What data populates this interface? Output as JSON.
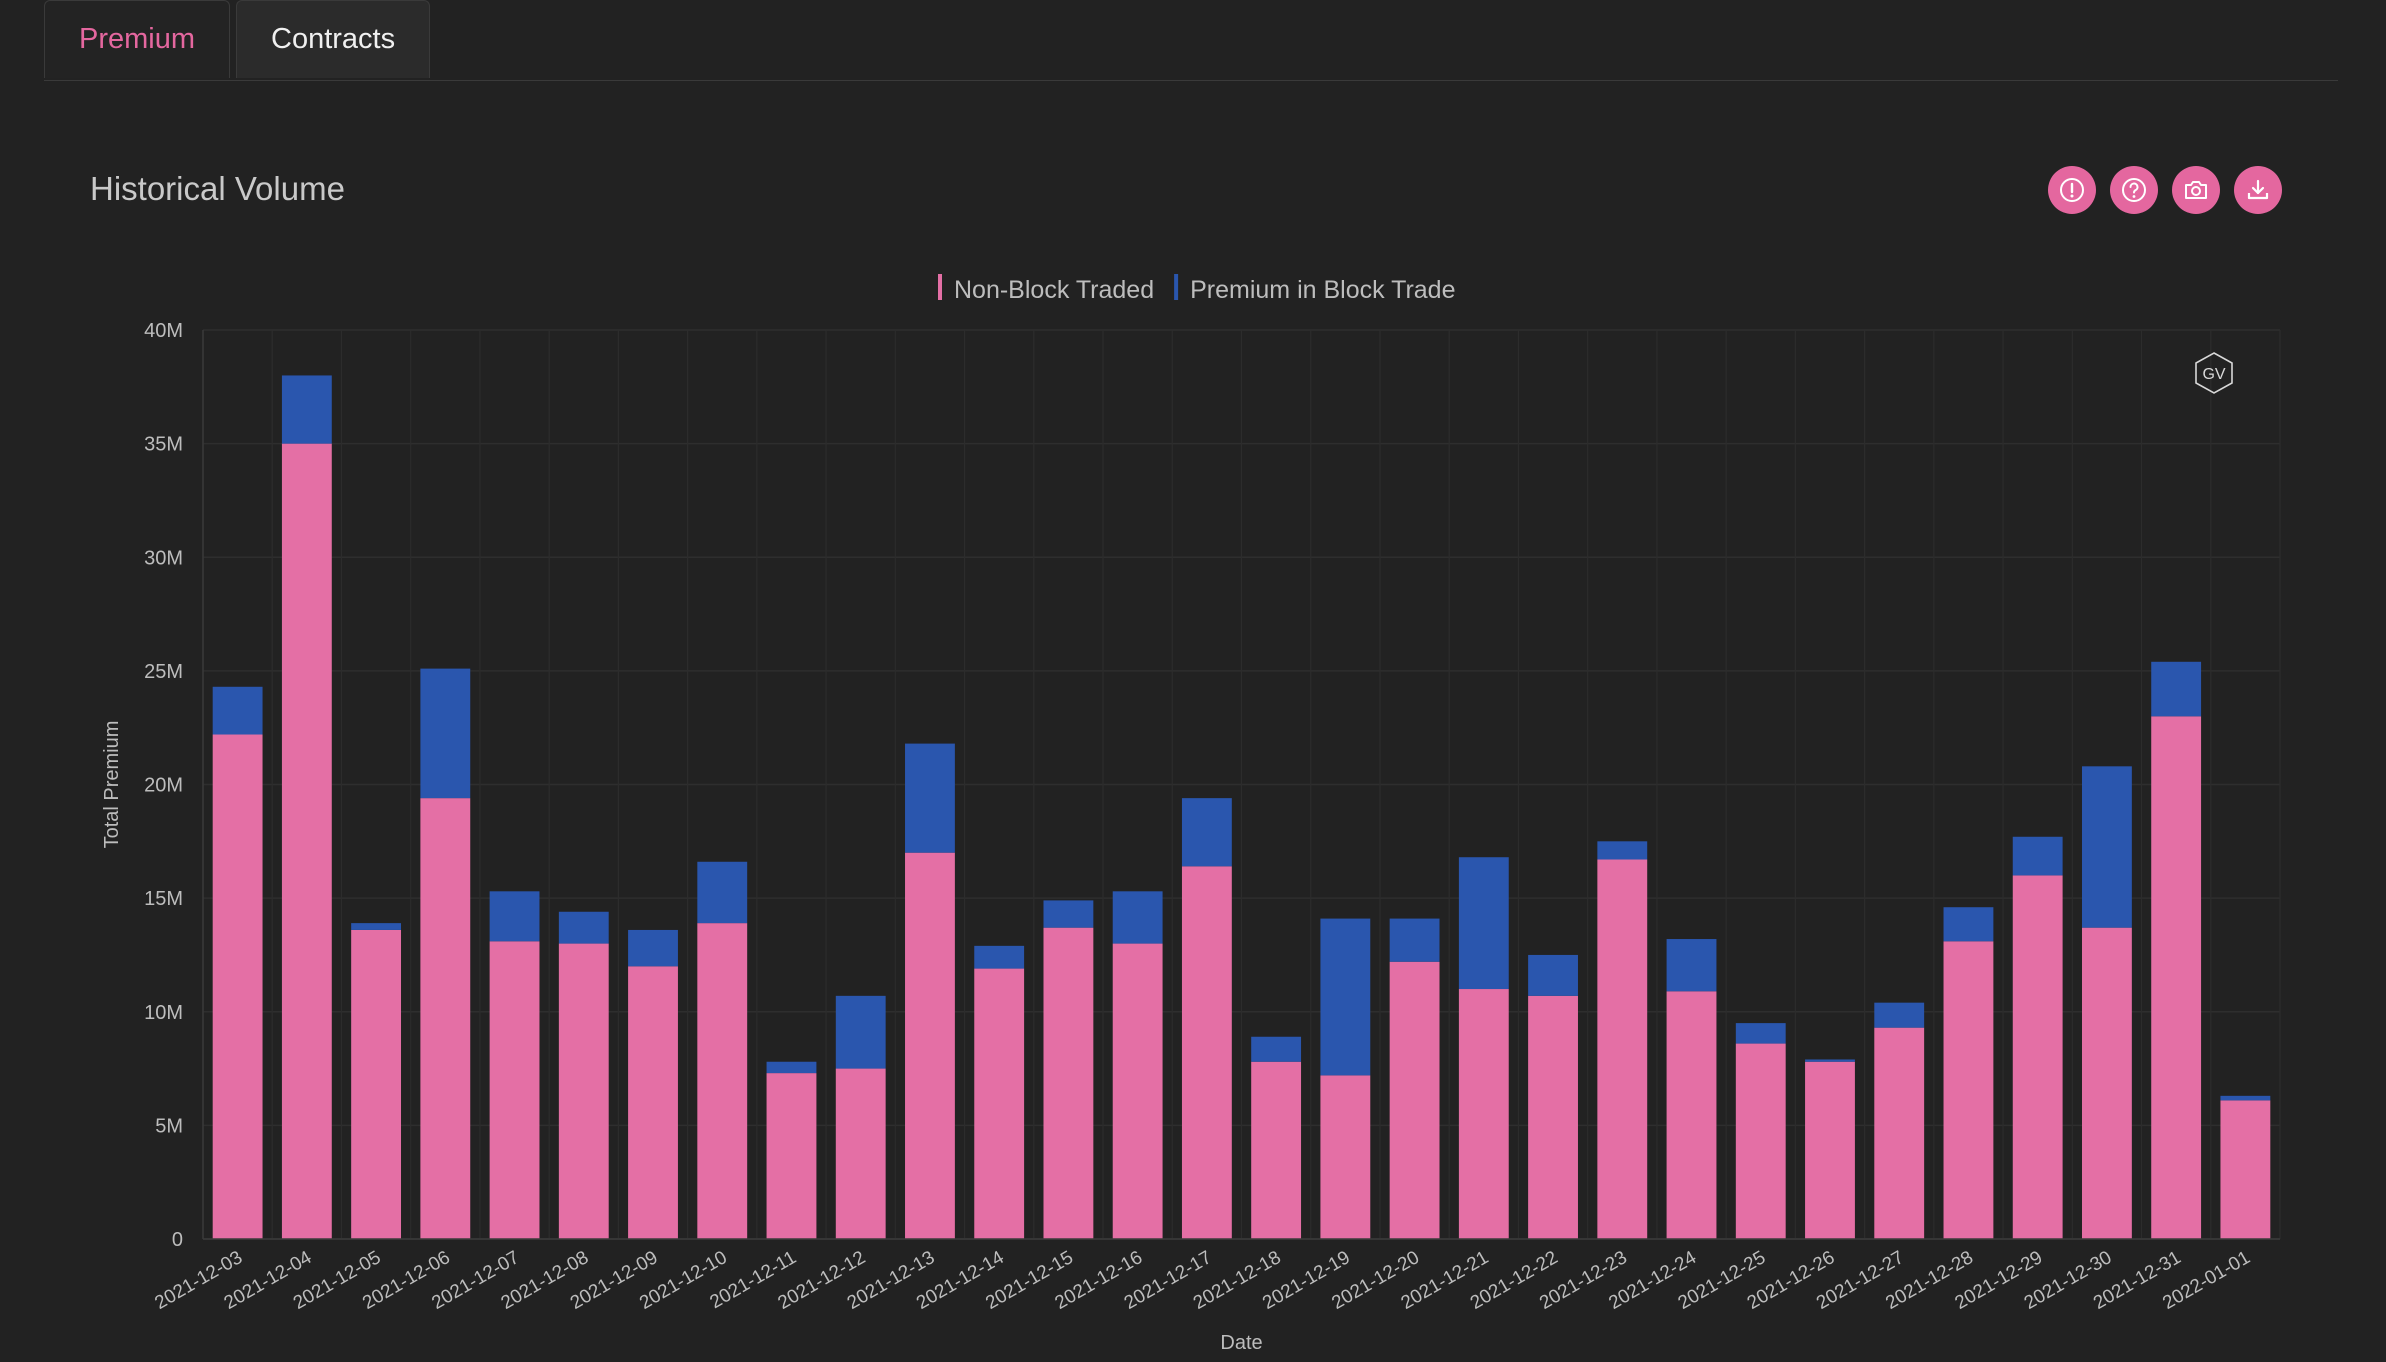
{
  "tabs": [
    {
      "label": "Premium",
      "active": true
    },
    {
      "label": "Contracts",
      "active": false
    }
  ],
  "header": {
    "title": "Historical Volume",
    "tools": [
      {
        "name": "info-icon"
      },
      {
        "name": "help-icon"
      },
      {
        "name": "camera-icon"
      },
      {
        "name": "download-icon"
      }
    ]
  },
  "watermark": "GV",
  "colors": {
    "accent": "#e4679f",
    "non_block": "#e46fa5",
    "block": "#2a56ae",
    "background": "#222222"
  },
  "chart_data": {
    "type": "bar",
    "stacked": true,
    "title": "",
    "xlabel": "Date",
    "ylabel": "Total Premium",
    "ylim": [
      0,
      40000000
    ],
    "yticks": [
      0,
      5000000,
      10000000,
      15000000,
      20000000,
      25000000,
      30000000,
      35000000,
      40000000
    ],
    "ytick_labels": [
      "0",
      "5M",
      "10M",
      "15M",
      "20M",
      "25M",
      "30M",
      "35M",
      "40M"
    ],
    "grid": true,
    "legend_position": "top-center",
    "categories": [
      "2021-12-03",
      "2021-12-04",
      "2021-12-05",
      "2021-12-06",
      "2021-12-07",
      "2021-12-08",
      "2021-12-09",
      "2021-12-10",
      "2021-12-11",
      "2021-12-12",
      "2021-12-13",
      "2021-12-14",
      "2021-12-15",
      "2021-12-16",
      "2021-12-17",
      "2021-12-18",
      "2021-12-19",
      "2021-12-20",
      "2021-12-21",
      "2021-12-22",
      "2021-12-23",
      "2021-12-24",
      "2021-12-25",
      "2021-12-26",
      "2021-12-27",
      "2021-12-28",
      "2021-12-29",
      "2021-12-30",
      "2021-12-31",
      "2022-01-01"
    ],
    "series": [
      {
        "name": "Non-Block Traded",
        "color": "#e46fa5",
        "values": [
          22200000,
          35000000,
          13600000,
          19400000,
          13100000,
          13000000,
          12000000,
          13900000,
          7300000,
          7500000,
          17000000,
          11900000,
          13700000,
          13000000,
          16400000,
          7800000,
          7200000,
          12200000,
          11000000,
          10700000,
          16700000,
          10900000,
          8600000,
          7800000,
          9300000,
          13100000,
          16000000,
          13700000,
          23000000,
          6100000
        ]
      },
      {
        "name": "Premium in Block Trade",
        "color": "#2a56ae",
        "values": [
          2100000,
          3000000,
          300000,
          5700000,
          2200000,
          1400000,
          1600000,
          2700000,
          500000,
          3200000,
          4800000,
          1000000,
          1200000,
          2300000,
          3000000,
          1100000,
          6900000,
          1900000,
          5800000,
          1800000,
          800000,
          2300000,
          900000,
          100000,
          1100000,
          1500000,
          1700000,
          7100000,
          2400000,
          200000
        ]
      }
    ]
  }
}
